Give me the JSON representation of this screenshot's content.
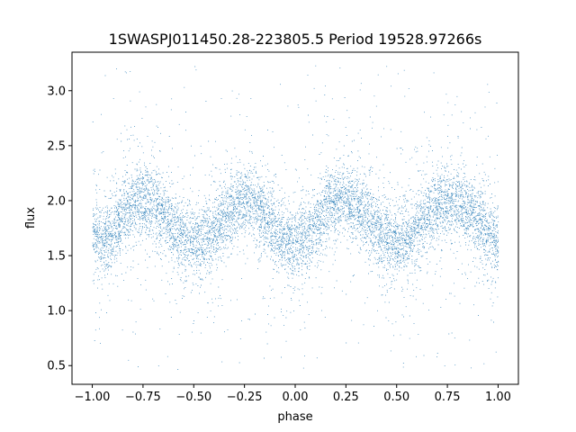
{
  "chart_data": {
    "type": "scatter",
    "title": "1SWASPJ011450.28-223805.5 Period 19528.97266s",
    "xlabel": "phase",
    "ylabel": "flux",
    "xlim": [
      -1.1,
      1.1
    ],
    "ylim": [
      0.33,
      3.35
    ],
    "grid": false,
    "legend": "none",
    "point_color": "#1f77b4",
    "x_ticks": [
      {
        "value": -1.0,
        "label": "−1.00"
      },
      {
        "value": -0.75,
        "label": "−0.75"
      },
      {
        "value": -0.5,
        "label": "−0.50"
      },
      {
        "value": -0.25,
        "label": "−0.25"
      },
      {
        "value": 0.0,
        "label": "0.00"
      },
      {
        "value": 0.25,
        "label": "0.25"
      },
      {
        "value": 0.5,
        "label": "0.50"
      },
      {
        "value": 0.75,
        "label": "0.75"
      },
      {
        "value": 1.0,
        "label": "1.00"
      }
    ],
    "y_ticks": [
      {
        "value": 0.5,
        "label": "0.5"
      },
      {
        "value": 1.0,
        "label": "1.0"
      },
      {
        "value": 1.5,
        "label": "1.5"
      },
      {
        "value": 2.0,
        "label": "2.0"
      },
      {
        "value": 2.5,
        "label": "2.5"
      },
      {
        "value": 3.0,
        "label": "3.0"
      }
    ],
    "series": [
      {
        "description": "phase-folded light curve, two cycles shown",
        "x": [
          -1.0,
          -0.95,
          -0.9,
          -0.85,
          -0.8,
          -0.75,
          -0.7,
          -0.65,
          -0.6,
          -0.55,
          -0.5,
          -0.45,
          -0.4,
          -0.35,
          -0.3,
          -0.25,
          -0.2,
          -0.15,
          -0.1,
          -0.05,
          0.0,
          0.05,
          0.1,
          0.15,
          0.2,
          0.25,
          0.3,
          0.35,
          0.4,
          0.45,
          0.5,
          0.55,
          0.6,
          0.65,
          0.7,
          0.75,
          0.8,
          0.85,
          0.9,
          0.95,
          1.0
        ],
        "y_median": [
          1.72,
          1.62,
          1.7,
          1.88,
          1.98,
          2.0,
          1.97,
          1.88,
          1.75,
          1.64,
          1.62,
          1.63,
          1.72,
          1.85,
          1.96,
          2.0,
          1.97,
          1.86,
          1.72,
          1.63,
          1.62,
          1.66,
          1.78,
          1.92,
          1.99,
          2.0,
          1.96,
          1.86,
          1.74,
          1.65,
          1.62,
          1.64,
          1.72,
          1.86,
          1.96,
          2.0,
          1.97,
          1.9,
          1.82,
          1.72,
          1.62
        ],
        "y_scatter_core": 0.16,
        "y_range": [
          0.46,
          3.23
        ]
      }
    ]
  }
}
